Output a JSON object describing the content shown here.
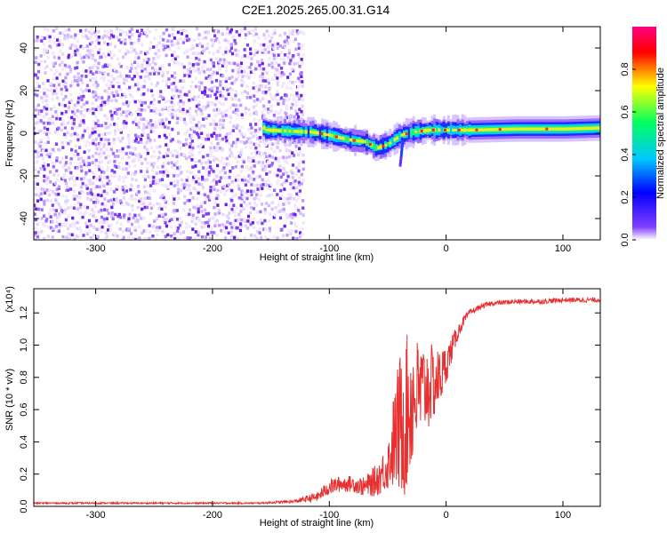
{
  "title": "C2E1.2025.265.00.31.G14",
  "chart_data": [
    {
      "type": "heatmap",
      "xlabel": "Height of straight line (km)",
      "ylabel": "Frequency (Hz)",
      "xlim": [
        -353,
        132
      ],
      "ylim": [
        -50,
        50
      ],
      "xticks": [
        -300,
        -200,
        -100,
        0,
        100
      ],
      "yticks": [
        -40,
        -20,
        0,
        20,
        40
      ],
      "colorbar": {
        "label": "Normalized spectral amplitude",
        "range": [
          0,
          1
        ],
        "ticks": [
          "0.0",
          "0.2",
          "0.4",
          "0.6",
          "0.8"
        ],
        "colors": [
          "#ffffff",
          "#8040ff",
          "#0000ff",
          "#00c8ff",
          "#00ff60",
          "#ffff00",
          "#ff0000",
          "#ff0080"
        ]
      },
      "noise_region": {
        "x": [
          -353,
          -123
        ],
        "y": [
          -50,
          50
        ],
        "amplitude": 0.15
      },
      "ridge_points": [
        {
          "x": -155,
          "y": 1.5
        },
        {
          "x": -135,
          "y": 1
        },
        {
          "x": -115,
          "y": 0.5
        },
        {
          "x": -100,
          "y": -1
        },
        {
          "x": -85,
          "y": -3
        },
        {
          "x": -70,
          "y": -4
        },
        {
          "x": -60,
          "y": -7
        },
        {
          "x": -50,
          "y": -5
        },
        {
          "x": -40,
          "y": -1
        },
        {
          "x": -30,
          "y": 0.5
        },
        {
          "x": -15,
          "y": 1.5
        },
        {
          "x": 0,
          "y": 1.5
        },
        {
          "x": 20,
          "y": 1.5
        },
        {
          "x": 60,
          "y": 2
        },
        {
          "x": 100,
          "y": 2
        },
        {
          "x": 132,
          "y": 2.5
        }
      ]
    },
    {
      "type": "line",
      "xlabel": "Height of straight line (km)",
      "ylabel": "SNR (10 * v/v)",
      "y_multiplier": "(x10⁴)",
      "xlim": [
        -353,
        132
      ],
      "ylim": [
        0,
        1.35
      ],
      "xticks": [
        -300,
        -200,
        -100,
        0,
        100
      ],
      "yticks": [
        0.0,
        0.2,
        0.4,
        0.6,
        0.8,
        1.0,
        1.2
      ],
      "series": [
        {
          "color": "#e83030",
          "x": [
            -353,
            -300,
            -250,
            -200,
            -160,
            -130,
            -110,
            -100,
            -90,
            -80,
            -70,
            -60,
            -50,
            -45,
            -40,
            -35,
            -30,
            -25,
            -20,
            -15,
            -10,
            -5,
            0,
            5,
            10,
            15,
            20,
            30,
            40,
            60,
            80,
            100,
            120,
            132
          ],
          "y": [
            0.02,
            0.02,
            0.02,
            0.02,
            0.02,
            0.03,
            0.06,
            0.12,
            0.14,
            0.14,
            0.12,
            0.16,
            0.25,
            0.4,
            0.5,
            0.55,
            0.65,
            0.7,
            0.72,
            0.75,
            0.76,
            0.8,
            0.88,
            0.98,
            1.08,
            1.15,
            1.2,
            1.24,
            1.26,
            1.27,
            1.27,
            1.28,
            1.28,
            1.28
          ],
          "noise": [
            0.005,
            0.005,
            0.005,
            0.005,
            0.005,
            0.01,
            0.03,
            0.05,
            0.05,
            0.05,
            0.06,
            0.1,
            0.15,
            0.3,
            0.45,
            0.5,
            0.45,
            0.35,
            0.3,
            0.28,
            0.22,
            0.18,
            0.12,
            0.08,
            0.05,
            0.03,
            0.02,
            0.015,
            0.015,
            0.015,
            0.015,
            0.015,
            0.015,
            0.015
          ]
        }
      ]
    }
  ]
}
